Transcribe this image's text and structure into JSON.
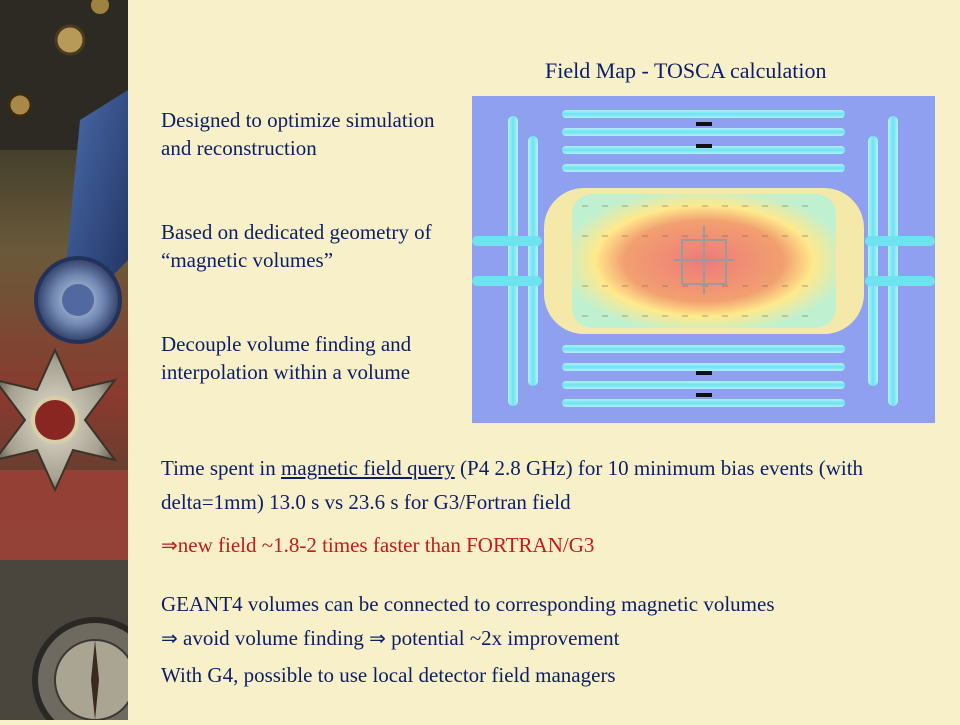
{
  "slide": {
    "field_map_title": "Field Map - TOSCA calculation",
    "bullets": [
      "Designed to optimize simulation and reconstruction",
      "Based on dedicated geometry of  “magnetic volumes”",
      "Decouple volume finding and interpolation within a volume"
    ],
    "time_spent": {
      "prefix": "Time spent in ",
      "link": "magnetic field query",
      "suffix": " (P4 2.8 GHz) for 10 minimum bias events  (with delta=1mm) 13.0 s vs 23.6 s for  G3/Fortran field"
    },
    "speedup": {
      "arrow": "⇒",
      "text": "new field ~1.8-2 times faster than FORTRAN/G3"
    },
    "geant_volumes": "GEANT4 volumes can be connected to corresponding magnetic volumes",
    "avoid_finding": {
      "arrow1": "⇒",
      "part1": " avoid volume finding ",
      "arrow2": "⇒",
      "part2": " potential ~2x improvement"
    },
    "local_managers": "With G4, possible to use local detector field managers"
  },
  "colors": {
    "text": "#0c1f66",
    "highlight": "#c81818",
    "background": "#f7f0c8",
    "map_background": "#8fa0f0",
    "map_core": "#ee7f7f",
    "map_ring": "#ffe98c",
    "map_return_yoke": "#7fe8f0"
  }
}
